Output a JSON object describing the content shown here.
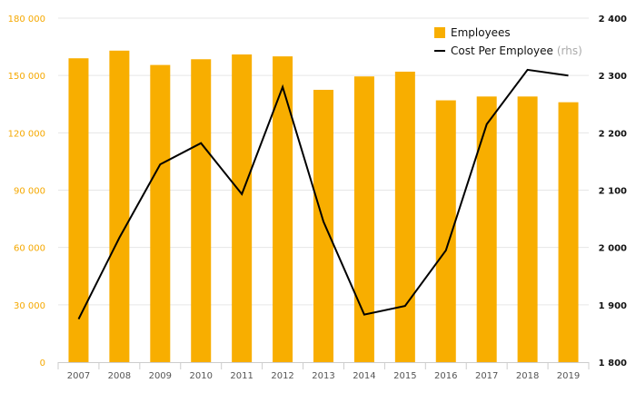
{
  "chart_data": {
    "type": "bar",
    "categories": [
      "2007",
      "2008",
      "2009",
      "2010",
      "2011",
      "2012",
      "2013",
      "2014",
      "2015",
      "2016",
      "2017",
      "2018",
      "2019"
    ],
    "series": [
      {
        "name": "Employees",
        "kind": "bar",
        "axis": "left",
        "color": "#f8ae00",
        "values": [
          159000,
          163000,
          155500,
          158500,
          161000,
          160000,
          142500,
          149500,
          152000,
          137000,
          139000,
          139000,
          136000
        ]
      },
      {
        "name": "Cost Per Employee",
        "name_suffix": "(rhs)",
        "kind": "line",
        "axis": "right",
        "color": "#000000",
        "values": [
          1875,
          2017,
          2145,
          2182,
          2093,
          2280,
          2045,
          1883,
          1898,
          1995,
          2215,
          2310,
          2300
        ]
      }
    ],
    "y_left": {
      "ylim": [
        0,
        180000
      ],
      "ticks": [
        0,
        30000,
        60000,
        90000,
        120000,
        150000,
        180000
      ],
      "tick_labels": [
        "0",
        "30 000",
        "60 000",
        "90 000",
        "120 000",
        "150 000",
        "180 000"
      ],
      "color": "#f5a800"
    },
    "y_right": {
      "ylim": [
        1800,
        2400
      ],
      "ticks": [
        1800,
        1900,
        2000,
        2100,
        2200,
        2300,
        2400
      ],
      "tick_labels": [
        "1 800",
        "1 900",
        "2 000",
        "2 100",
        "2 200",
        "2 300",
        "2 400"
      ],
      "color": "#111111"
    },
    "grid": true,
    "legend_position": "top-right",
    "title": "",
    "xlabel": "",
    "ylabel": ""
  },
  "legend": {
    "items": [
      {
        "label": "Employees",
        "suffix": ""
      },
      {
        "label": "Cost Per Employee",
        "suffix": "(rhs)"
      }
    ]
  }
}
